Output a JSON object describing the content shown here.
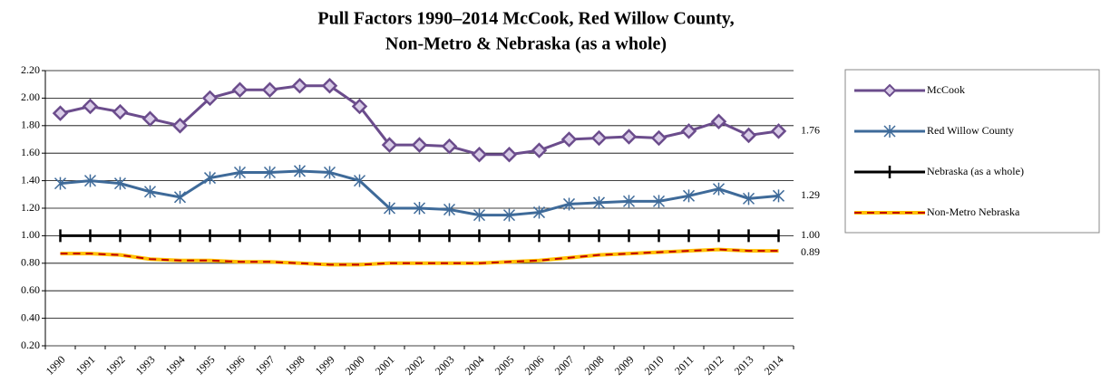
{
  "chart_data": {
    "type": "line",
    "title": [
      "Pull Factors 1990–2014 McCook, Red Willow County,",
      "Non-Metro & Nebraska (as a whole)"
    ],
    "categories": [
      "1990",
      "1991",
      "1992",
      "1993",
      "1994",
      "1995",
      "1996",
      "1997",
      "1998",
      "1999",
      "2000",
      "2001",
      "2002",
      "2003",
      "2004",
      "2005",
      "2006",
      "2007",
      "2008",
      "2009",
      "2010",
      "2011",
      "2012",
      "2013",
      "2014"
    ],
    "series": [
      {
        "name": "McCook",
        "color": "#6B4C8C",
        "marker": "diamond",
        "values": [
          1.89,
          1.94,
          1.9,
          1.85,
          1.8,
          2.0,
          2.06,
          2.06,
          2.09,
          2.09,
          1.94,
          1.66,
          1.66,
          1.65,
          1.59,
          1.59,
          1.62,
          1.7,
          1.71,
          1.72,
          1.71,
          1.76,
          1.83,
          1.73,
          1.76
        ]
      },
      {
        "name": "Red Willow County",
        "color": "#3E6A99",
        "marker": "asterisk",
        "values": [
          1.38,
          1.4,
          1.38,
          1.32,
          1.28,
          1.42,
          1.46,
          1.46,
          1.47,
          1.46,
          1.4,
          1.2,
          1.2,
          1.19,
          1.15,
          1.15,
          1.17,
          1.23,
          1.24,
          1.25,
          1.25,
          1.29,
          1.34,
          1.27,
          1.29
        ]
      },
      {
        "name": "Nebraska (as a whole)",
        "color": "#000000",
        "marker": "plus",
        "values": [
          1,
          1,
          1,
          1,
          1,
          1,
          1,
          1,
          1,
          1,
          1,
          1,
          1,
          1,
          1,
          1,
          1,
          1,
          1,
          1,
          1,
          1,
          1,
          1,
          1
        ]
      },
      {
        "name": "Non-Metro Nebraska",
        "color": "#FFC000",
        "dash_color": "#C00000",
        "marker": "none",
        "values": [
          0.87,
          0.87,
          0.86,
          0.83,
          0.82,
          0.82,
          0.81,
          0.81,
          0.8,
          0.79,
          0.79,
          0.8,
          0.8,
          0.8,
          0.8,
          0.81,
          0.82,
          0.84,
          0.86,
          0.87,
          0.88,
          0.89,
          0.9,
          0.89,
          0.89
        ]
      }
    ],
    "annotations": [
      {
        "text": "1.76",
        "y": 1.76
      },
      {
        "text": "1.29",
        "y": 1.29
      },
      {
        "text": "1.00",
        "y": 1
      },
      {
        "text": "0.89",
        "y": 0.89
      }
    ],
    "ylim": [
      0.2,
      2.2
    ],
    "yticks": [
      {
        "value": 0.2,
        "label": "0.20"
      },
      {
        "value": 0.4,
        "label": "0.40"
      },
      {
        "value": 0.6,
        "label": "0.60"
      },
      {
        "value": 0.8,
        "label": "0.80"
      },
      {
        "value": 1,
        "label": "1.00"
      },
      {
        "value": 1.2,
        "label": "1.20"
      },
      {
        "value": 1.4,
        "label": "1.40"
      },
      {
        "value": 1.6,
        "label": "1.60"
      },
      {
        "value": 1.8,
        "label": "1.80"
      },
      {
        "value": 2,
        "label": "2.00"
      },
      {
        "value": 2.2,
        "label": "2.20"
      }
    ],
    "grid": true,
    "legend": "right"
  }
}
